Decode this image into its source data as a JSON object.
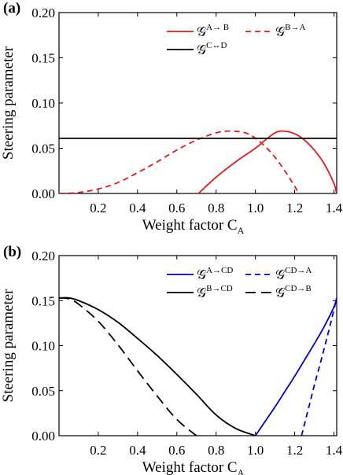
{
  "chart_data": [
    {
      "panel_label": "(a)",
      "type": "line",
      "xlabel": "Weight factor C",
      "xlabel_sub": "A",
      "ylabel": "Steering parameter",
      "xlim": [
        0,
        1.414
      ],
      "ylim": [
        0,
        0.2
      ],
      "xticks": [
        "0.2",
        "0.4",
        "0.6",
        "0.8",
        "1.0",
        "1.2",
        "1.4"
      ],
      "yticks": [
        "0.00",
        "0.05",
        "0.10",
        "0.15",
        "0.20"
      ],
      "legend": [
        {
          "symbol": "𝒢",
          "sup": "A→ B",
          "color": "#e41a1c",
          "dash": "solid"
        },
        {
          "symbol": "𝒢",
          "sup": "B→A",
          "color": "#e41a1c",
          "dash": "dashed"
        },
        {
          "symbol": "𝒢",
          "sup": "C↔D",
          "color": "#000000",
          "dash": "solid"
        }
      ],
      "series": [
        {
          "color": "#e41a1c",
          "dash": "solid",
          "x": [
            0.71,
            0.8,
            0.9,
            1.0,
            1.05,
            1.1,
            1.14,
            1.2,
            1.25,
            1.3,
            1.35,
            1.4,
            1.414
          ],
          "y": [
            0.0,
            0.018,
            0.035,
            0.05,
            0.059,
            0.067,
            0.069,
            0.066,
            0.059,
            0.048,
            0.033,
            0.011,
            0.0
          ]
        },
        {
          "color": "#e41a1c",
          "dash": "dashed",
          "x": [
            0.0,
            0.1,
            0.2,
            0.3,
            0.4,
            0.5,
            0.6,
            0.7,
            0.8,
            0.87,
            0.95,
            1.0,
            1.05,
            1.1,
            1.15,
            1.2,
            1.22
          ],
          "y": [
            0.0,
            0.001,
            0.005,
            0.012,
            0.023,
            0.035,
            0.048,
            0.059,
            0.067,
            0.069,
            0.067,
            0.061,
            0.052,
            0.04,
            0.025,
            0.008,
            0.0
          ]
        },
        {
          "color": "#000000",
          "dash": "solid",
          "x": [
            0.0,
            1.414
          ],
          "y": [
            0.061,
            0.061
          ]
        }
      ]
    },
    {
      "panel_label": "(b)",
      "type": "line",
      "xlabel": "Weight factor C",
      "xlabel_sub": "A",
      "ylabel": "Steering parameter",
      "xlim": [
        0,
        1.414
      ],
      "ylim": [
        0,
        0.2
      ],
      "xticks": [
        "0.2",
        "0.4",
        "0.6",
        "0.8",
        "1.0",
        "1.2",
        "1.4"
      ],
      "yticks": [
        "0.00",
        "0.05",
        "0.10",
        "0.15",
        "0.20"
      ],
      "legend": [
        {
          "symbol": "𝒢",
          "sup": "A→CD",
          "color": "#0000cc",
          "dash": "solid"
        },
        {
          "symbol": "𝒢",
          "sup": "CD→A",
          "color": "#0000cc",
          "dash": "dashed"
        },
        {
          "symbol": "𝒢",
          "sup": "B→CD",
          "color": "#000000",
          "dash": "solid"
        },
        {
          "symbol": "𝒢",
          "sup": "CD→B",
          "color": "#000000",
          "dash": "longdash"
        }
      ],
      "series": [
        {
          "color": "#0000cc",
          "dash": "solid",
          "x": [
            1.0,
            1.05,
            1.1,
            1.15,
            1.2,
            1.25,
            1.3,
            1.35,
            1.4,
            1.414
          ],
          "y": [
            0.0,
            0.016,
            0.032,
            0.049,
            0.066,
            0.084,
            0.102,
            0.121,
            0.143,
            0.153
          ]
        },
        {
          "color": "#0000cc",
          "dash": "dashed",
          "x": [
            1.235,
            1.27,
            1.3,
            1.33,
            1.36,
            1.39,
            1.414
          ],
          "y": [
            0.0,
            0.03,
            0.056,
            0.08,
            0.105,
            0.131,
            0.153
          ]
        },
        {
          "color": "#000000",
          "dash": "solid",
          "x": [
            0.0,
            0.05,
            0.1,
            0.2,
            0.3,
            0.4,
            0.5,
            0.6,
            0.7,
            0.8,
            0.9,
            1.0
          ],
          "y": [
            0.153,
            0.153,
            0.15,
            0.14,
            0.126,
            0.108,
            0.089,
            0.068,
            0.046,
            0.023,
            0.008,
            0.0
          ]
        },
        {
          "color": "#000000",
          "dash": "longdash",
          "x": [
            0.0,
            0.05,
            0.1,
            0.2,
            0.3,
            0.4,
            0.5,
            0.6,
            0.7,
            0.707
          ],
          "y": [
            0.153,
            0.152,
            0.146,
            0.127,
            0.101,
            0.072,
            0.044,
            0.018,
            0.0,
            0.0
          ]
        }
      ]
    }
  ]
}
